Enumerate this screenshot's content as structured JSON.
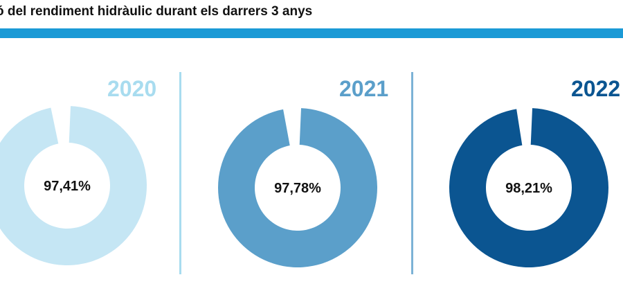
{
  "header": {
    "title": "ó del rendiment hidràulic durant els darrers 3 anys",
    "accent_color": "#1b9ad6"
  },
  "chart_data": {
    "type": "pie",
    "variant": "donut",
    "title": "ó del rendiment hidràulic durant els darrers 3 anys",
    "charts": [
      {
        "year": "2020",
        "value": 97.41,
        "label": "97,41%",
        "color": "#c5e6f4",
        "year_color": "#a8dcef"
      },
      {
        "year": "2021",
        "value": 97.78,
        "label": "97,78%",
        "color": "#5b9fca",
        "year_color": "#5b9fca"
      },
      {
        "year": "2022",
        "value": 98.21,
        "label": "98,21%",
        "color": "#0b5591",
        "year_color": "#0b5591"
      }
    ],
    "divider_colors": [
      "#a8dcef",
      "#7cb2d6"
    ]
  }
}
